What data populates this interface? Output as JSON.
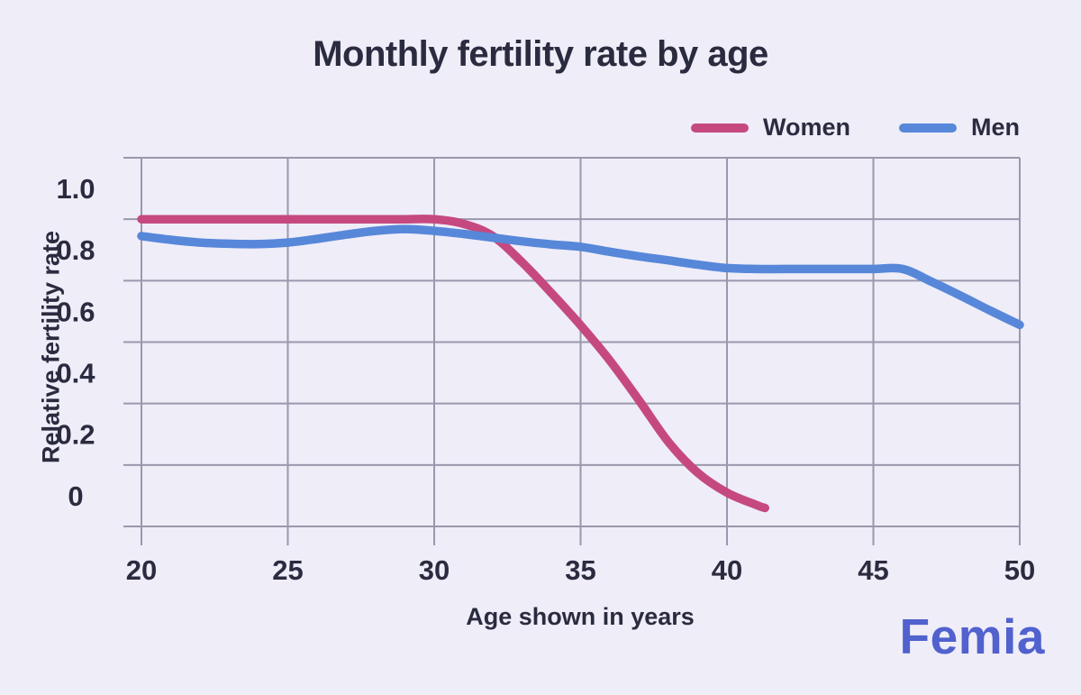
{
  "page": {
    "background": "#EFEDF8",
    "brand": "Femia"
  },
  "title": "Monthly fertility rate by age",
  "legend": [
    {
      "label": "Women",
      "color": "#C5497F"
    },
    {
      "label": "Men",
      "color": "#5787D9"
    }
  ],
  "colors": {
    "background": "#EFEDF8",
    "gridline": "#9A98AC",
    "text": "#2B2B40",
    "women_line": "#C5497F",
    "men_line": "#5787D9",
    "brand": "#5161CE"
  },
  "chart_data": {
    "type": "line",
    "title": "Monthly fertility rate by age",
    "xlabel": "Age shown in years",
    "ylabel": "Relative fertility rate",
    "xlim": [
      20,
      50
    ],
    "ylim": [
      -0.1,
      1.1
    ],
    "grid": true,
    "grid_step_y": 0.2,
    "legend_position": "top-right",
    "x_ticks": [
      20,
      25,
      30,
      35,
      40,
      45,
      50
    ],
    "y_ticks": [
      {
        "label": "1.0",
        "value": 1.0
      },
      {
        "label": "0.8",
        "value": 0.8
      },
      {
        "label": "0.6",
        "value": 0.6
      },
      {
        "label": "0.4",
        "value": 0.4
      },
      {
        "label": "0.2",
        "value": 0.2
      },
      {
        "label": "0",
        "value": 0.0
      }
    ],
    "series": [
      {
        "name": "Women",
        "color": "#C5497F",
        "x": [
          20,
          21,
          22,
          23,
          24,
          25,
          26,
          27,
          28,
          29,
          30,
          31,
          32,
          33,
          34,
          35,
          36,
          37,
          38,
          39,
          40,
          41,
          41.3
        ],
        "y": [
          0.9,
          0.9,
          0.9,
          0.9,
          0.9,
          0.9,
          0.9,
          0.9,
          0.9,
          0.9,
          0.9,
          0.885,
          0.845,
          0.76,
          0.66,
          0.555,
          0.44,
          0.31,
          0.175,
          0.075,
          0.01,
          -0.03,
          -0.04
        ]
      },
      {
        "name": "Men",
        "color": "#5787D9",
        "x": [
          20,
          21,
          22,
          23,
          24,
          25,
          26,
          27,
          28,
          29,
          30,
          31,
          32,
          33,
          34,
          35,
          36,
          37,
          38,
          39,
          40,
          41,
          42,
          43,
          44,
          45,
          46,
          47,
          48,
          49,
          50
        ],
        "y": [
          0.845,
          0.833,
          0.824,
          0.82,
          0.819,
          0.824,
          0.836,
          0.85,
          0.862,
          0.868,
          0.862,
          0.852,
          0.84,
          0.828,
          0.818,
          0.81,
          0.794,
          0.779,
          0.766,
          0.752,
          0.741,
          0.738,
          0.738,
          0.738,
          0.738,
          0.738,
          0.738,
          0.696,
          0.65,
          0.602,
          0.556
        ]
      }
    ]
  }
}
